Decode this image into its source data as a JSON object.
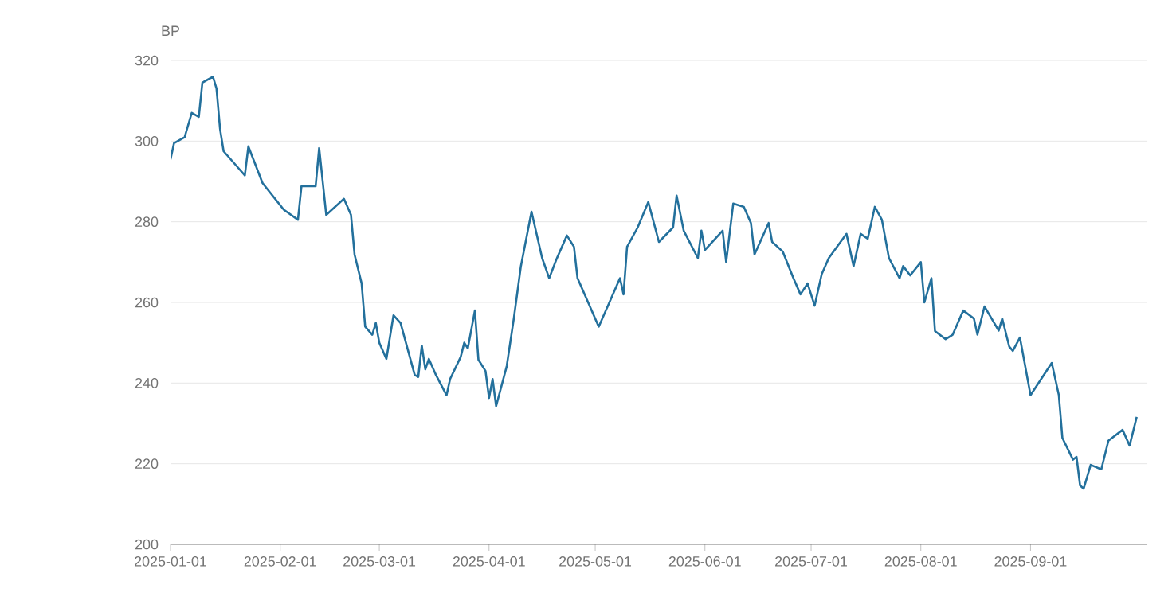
{
  "chart_data": {
    "type": "line",
    "ylabel": "BP",
    "color": "#23709c",
    "grid": "y",
    "marker": "none",
    "line_style": "solid",
    "ylim": [
      200,
      320
    ],
    "yticks": [
      200,
      220,
      240,
      260,
      280,
      300,
      320
    ],
    "xlim": [
      "2025-01-01",
      "2025-10-04"
    ],
    "xticks": [
      "2025-01-01",
      "2025-02-01",
      "2025-03-01",
      "2025-04-01",
      "2025-05-01",
      "2025-06-01",
      "2025-07-01",
      "2025-08-01",
      "2025-09-01"
    ],
    "x": [
      "2025-01-01",
      "2025-01-02",
      "2025-01-05",
      "2025-01-07",
      "2025-01-09",
      "2025-01-10",
      "2025-01-13",
      "2025-01-14",
      "2025-01-15",
      "2025-01-16",
      "2025-01-20",
      "2025-01-22",
      "2025-01-23",
      "2025-01-27",
      "2025-02-02",
      "2025-02-06",
      "2025-02-07",
      "2025-02-11",
      "2025-02-12",
      "2025-02-14",
      "2025-02-19",
      "2025-02-21",
      "2025-02-22",
      "2025-02-24",
      "2025-02-25",
      "2025-02-27",
      "2025-02-28",
      "2025-03-01",
      "2025-03-03",
      "2025-03-05",
      "2025-03-07",
      "2025-03-11",
      "2025-03-12",
      "2025-03-13",
      "2025-03-14",
      "2025-03-15",
      "2025-03-17",
      "2025-03-20",
      "2025-03-21",
      "2025-03-24",
      "2025-03-25",
      "2025-03-26",
      "2025-03-28",
      "2025-03-29",
      "2025-03-31",
      "2025-04-01",
      "2025-04-02",
      "2025-04-03",
      "2025-04-06",
      "2025-04-08",
      "2025-04-10",
      "2025-04-13",
      "2025-04-16",
      "2025-04-18",
      "2025-04-20",
      "2025-04-23",
      "2025-04-25",
      "2025-04-26",
      "2025-05-02",
      "2025-05-08",
      "2025-05-09",
      "2025-05-10",
      "2025-05-13",
      "2025-05-16",
      "2025-05-19",
      "2025-05-23",
      "2025-05-24",
      "2025-05-26",
      "2025-05-30",
      "2025-05-31",
      "2025-06-01",
      "2025-06-06",
      "2025-06-07",
      "2025-06-09",
      "2025-06-12",
      "2025-06-14",
      "2025-06-15",
      "2025-06-19",
      "2025-06-20",
      "2025-06-23",
      "2025-06-26",
      "2025-06-28",
      "2025-06-30",
      "2025-07-02",
      "2025-07-04",
      "2025-07-06",
      "2025-07-11",
      "2025-07-13",
      "2025-07-15",
      "2025-07-17",
      "2025-07-19",
      "2025-07-21",
      "2025-07-23",
      "2025-07-26",
      "2025-07-27",
      "2025-07-29",
      "2025-08-01",
      "2025-08-02",
      "2025-08-04",
      "2025-08-05",
      "2025-08-08",
      "2025-08-10",
      "2025-08-13",
      "2025-08-16",
      "2025-08-17",
      "2025-08-19",
      "2025-08-23",
      "2025-08-24",
      "2025-08-26",
      "2025-08-27",
      "2025-08-29",
      "2025-09-01",
      "2025-09-07",
      "2025-09-09",
      "2025-09-10",
      "2025-09-13",
      "2025-09-14",
      "2025-09-15",
      "2025-09-16",
      "2025-09-18",
      "2025-09-21",
      "2025-09-23",
      "2025-09-27",
      "2025-09-29",
      "2025-10-01"
    ],
    "values": [
      295.5,
      299.5,
      301,
      307,
      306,
      314.5,
      316,
      313,
      303,
      297.5,
      293.5,
      291.5,
      298.7,
      289.6,
      283,
      280.5,
      288.8,
      288.8,
      298.3,
      281.7,
      285.7,
      281.7,
      271.9,
      264.7,
      254,
      252,
      254.9,
      250,
      246,
      256.8,
      254.9,
      242,
      241.5,
      249.3,
      243.4,
      246,
      242,
      237,
      241,
      246.5,
      250,
      248.6,
      258,
      245.8,
      243,
      236.3,
      241,
      234.3,
      244.2,
      256,
      269,
      282.5,
      271,
      266,
      270.6,
      276.6,
      273.8,
      266,
      254,
      266,
      262,
      273.8,
      278.6,
      284.9,
      275,
      278.6,
      286.5,
      277.8,
      271,
      277.8,
      273,
      277.8,
      270,
      284.5,
      283.7,
      279.7,
      271.9,
      279.7,
      275,
      272.6,
      266,
      262,
      264.7,
      259.2,
      267,
      271,
      277,
      269,
      277,
      275.8,
      283.7,
      280.5,
      271,
      266,
      269,
      266.7,
      270,
      260,
      266,
      252.9,
      250.9,
      252,
      258,
      256,
      252,
      259,
      253,
      256,
      249,
      248,
      251.3,
      237,
      245,
      237,
      226.4,
      221,
      221.7,
      214.6,
      213.8,
      219.7,
      218.6,
      225.7,
      228.4,
      224.5,
      231.6
    ]
  }
}
